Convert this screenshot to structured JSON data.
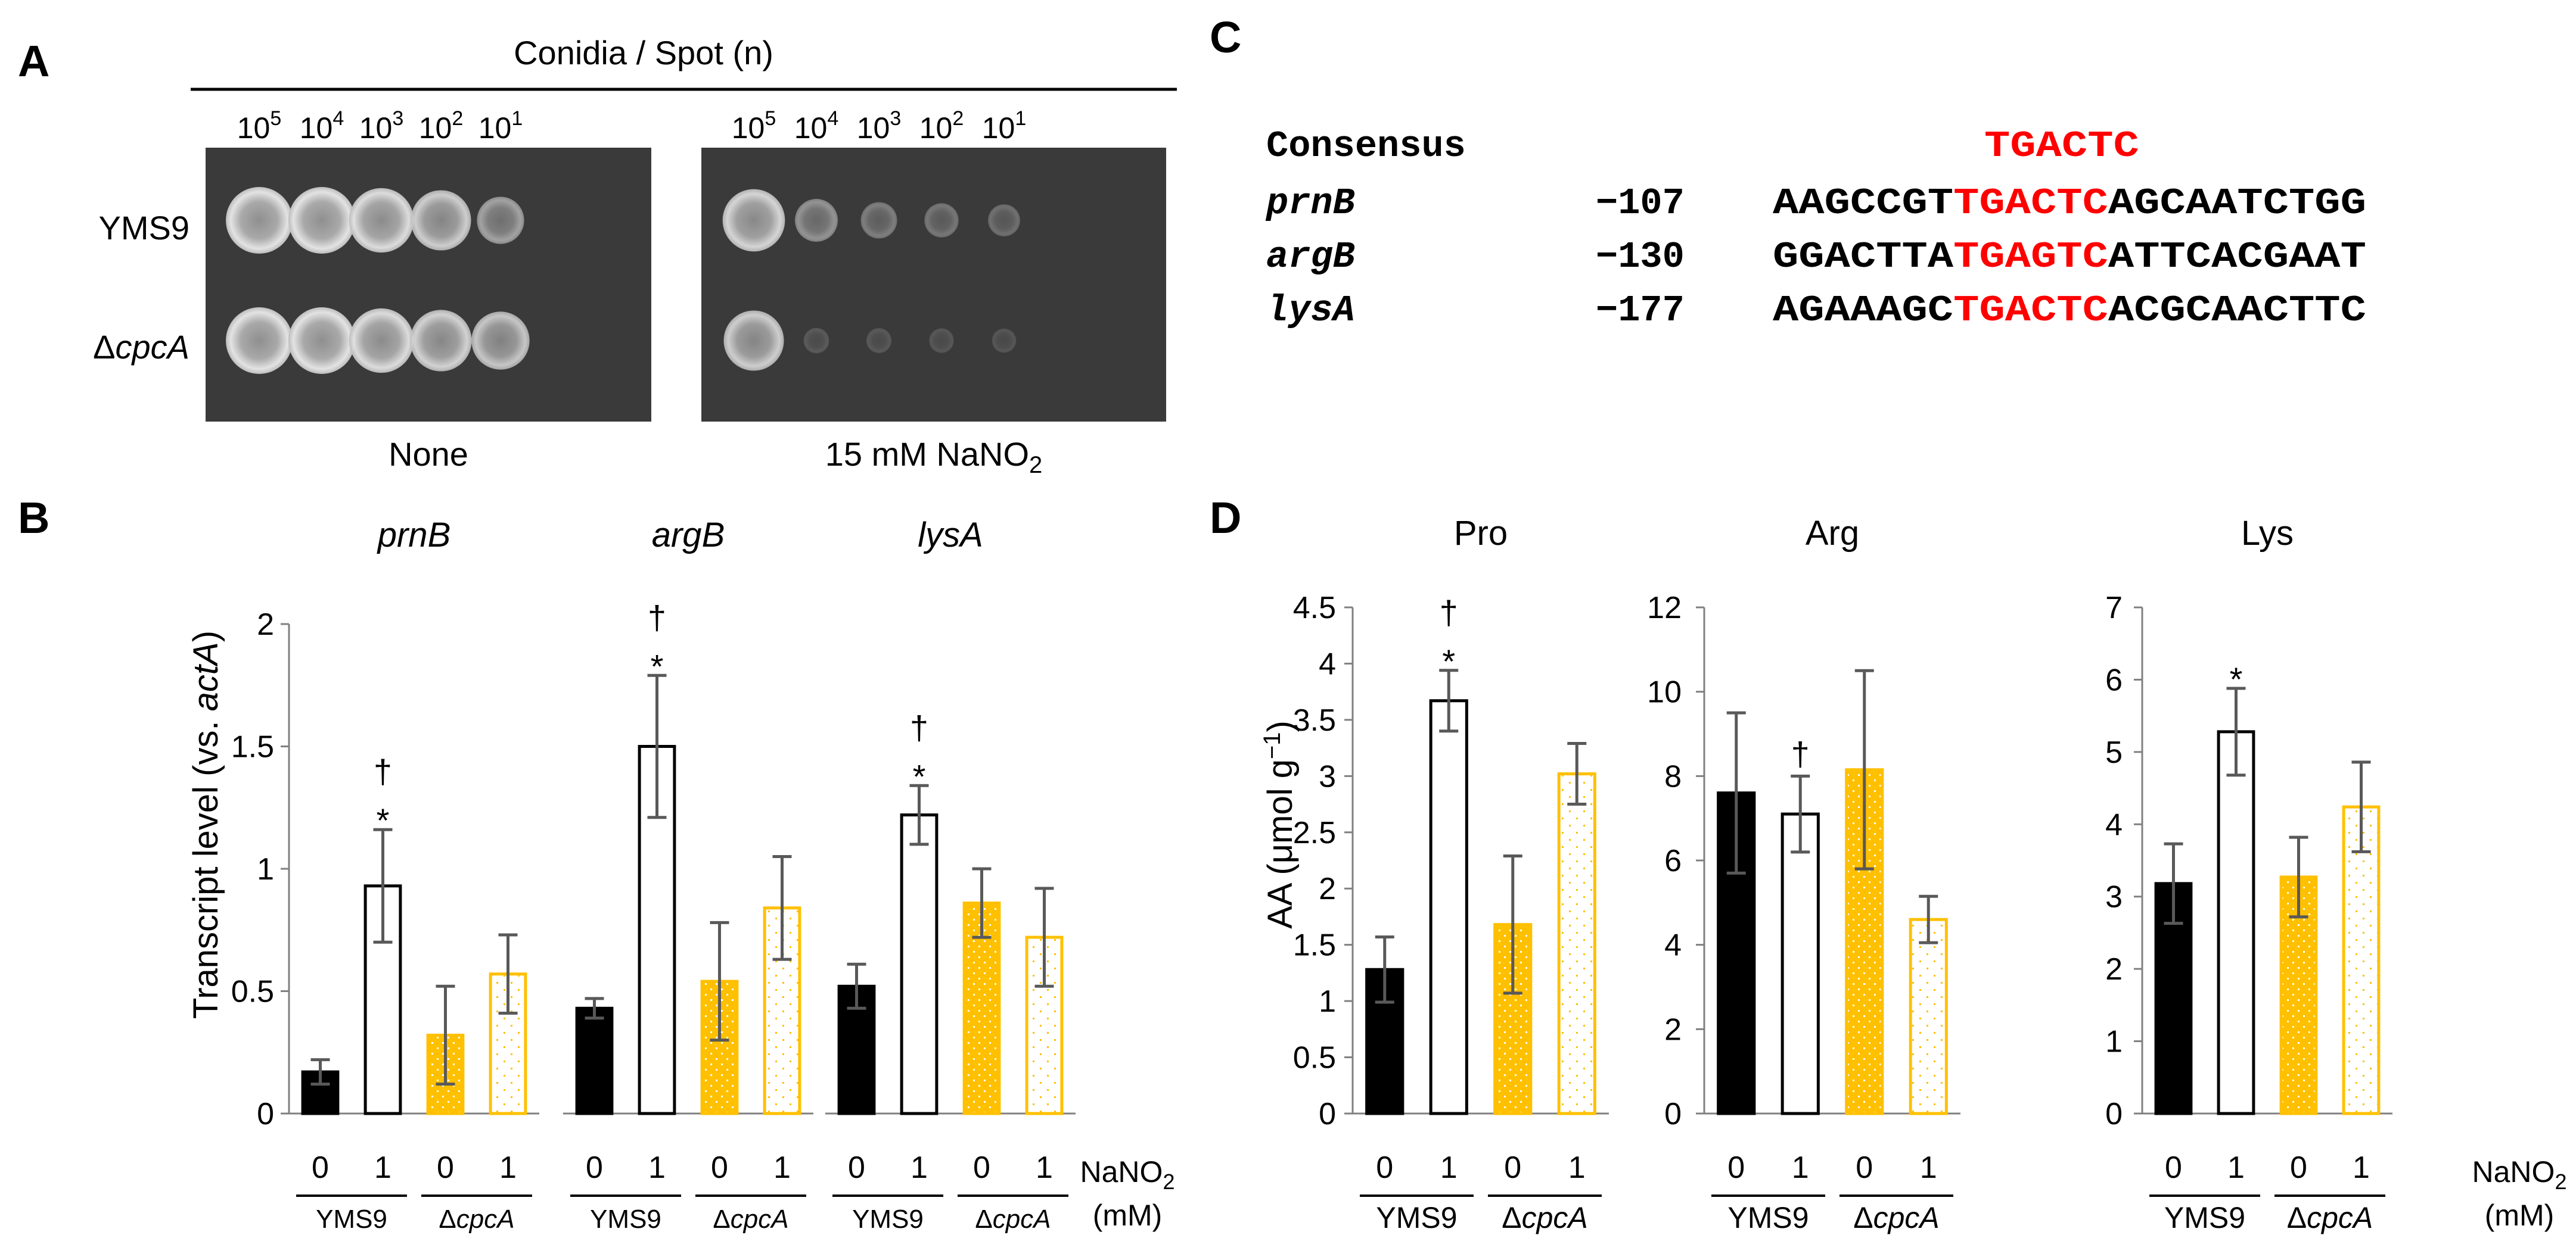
{
  "panel_labels": {
    "a": "A",
    "b": "B",
    "c": "C",
    "d": "D"
  },
  "panelA": {
    "header": "Conidia / Spot (n)",
    "dilutions": [
      {
        "base": "10",
        "exp": "5"
      },
      {
        "base": "10",
        "exp": "4"
      },
      {
        "base": "10",
        "exp": "3"
      },
      {
        "base": "10",
        "exp": "2"
      },
      {
        "base": "10",
        "exp": "1"
      }
    ],
    "strains": [
      {
        "prefix": "",
        "name": "YMS9"
      },
      {
        "prefix": "Δ",
        "name": "cpcA"
      }
    ],
    "conditions": [
      {
        "label": "None",
        "sub": ""
      },
      {
        "label": "15 mM NaNO",
        "sub": "2"
      }
    ],
    "growth": [
      [
        [
          1.0,
          1.0,
          0.95,
          0.85,
          0.55
        ],
        [
          1.0,
          1.0,
          0.95,
          0.88,
          0.8
        ]
      ],
      [
        [
          0.9,
          0.45,
          0.3,
          0.25,
          0.2
        ],
        [
          0.85,
          0.05,
          0.04,
          0.03,
          0.02
        ]
      ]
    ]
  },
  "panelC": {
    "rows": [
      {
        "name": "Consensus",
        "pos": "",
        "pre": "",
        "motif": "TGACTC",
        "post": "",
        "italic": false
      },
      {
        "name": "prnB",
        "pos": "−107",
        "pre": "AAGCCGT",
        "motif": "TGACTC",
        "post": "AGCAATCTGG",
        "italic": true
      },
      {
        "name": "argB",
        "pos": "−130",
        "pre": "GGACTTA",
        "motif": "TGAGTC",
        "post": "ATTCACGAAT",
        "italic": true
      },
      {
        "name": "lysA",
        "pos": "−177",
        "pre": "AGAAAGC",
        "motif": "TGACTC",
        "post": "ACGCAACTTC",
        "italic": true
      }
    ]
  },
  "panelB_ylabel": {
    "prefix": "Transcript level (vs. ",
    "gene": "actA",
    "suffix": ")"
  },
  "panelD_ylabel": {
    "prefix": "AA (",
    "unit": "μmol g",
    "exp": "−1",
    "suffix": ")"
  },
  "xaxis": {
    "treat": [
      "0",
      "1",
      "0",
      "1"
    ],
    "strain1": "YMS9",
    "strain2_prefix": "Δ",
    "strain2_name": "cpcA",
    "nano2_label": "NaNO",
    "nano2_sub": "2",
    "mm": "(mM)"
  },
  "chart_data": [
    {
      "type": "bar",
      "panel": "B",
      "title": "prnB",
      "ylabel": "Transcript level (vs. actA)",
      "ylim": [
        0,
        2
      ],
      "yticks": [
        0,
        0.5,
        1,
        1.5,
        2
      ],
      "ytick_labels": [
        "0",
        "0.5",
        "1",
        "1.5",
        "2"
      ],
      "categories": [
        "YMS9 0",
        "YMS9 1",
        "ΔcpcA 0",
        "ΔcpcA 1"
      ],
      "values": [
        0.17,
        0.93,
        0.32,
        0.57
      ],
      "errors": [
        0.05,
        0.23,
        0.2,
        0.16
      ],
      "annotations": [
        "",
        "†\n*",
        "",
        ""
      ]
    },
    {
      "type": "bar",
      "panel": "B",
      "title": "argB",
      "ylim": [
        0,
        2
      ],
      "yticks": [
        0,
        0.5,
        1,
        1.5,
        2
      ],
      "ytick_labels": [],
      "categories": [
        "YMS9 0",
        "YMS9 1",
        "ΔcpcA 0",
        "ΔcpcA 1"
      ],
      "values": [
        0.43,
        1.5,
        0.54,
        0.84
      ],
      "errors": [
        0.04,
        0.29,
        0.24,
        0.21
      ],
      "annotations": [
        "",
        "†\n*",
        "",
        ""
      ]
    },
    {
      "type": "bar",
      "panel": "B",
      "title": "lysA",
      "ylim": [
        0,
        2
      ],
      "yticks": [
        0,
        0.5,
        1,
        1.5,
        2
      ],
      "ytick_labels": [],
      "categories": [
        "YMS9 0",
        "YMS9 1",
        "ΔcpcA 0",
        "ΔcpcA 1"
      ],
      "values": [
        0.52,
        1.22,
        0.86,
        0.72
      ],
      "errors": [
        0.09,
        0.12,
        0.14,
        0.2
      ],
      "annotations": [
        "",
        "†\n*",
        "",
        ""
      ]
    },
    {
      "type": "bar",
      "panel": "D",
      "title": "Pro",
      "ylabel": "AA (μmol g−1)",
      "ylim": [
        0,
        4.5
      ],
      "yticks": [
        0,
        0.5,
        1,
        1.5,
        2,
        2.5,
        3,
        3.5,
        4,
        4.5
      ],
      "ytick_labels": [
        "0",
        "0.5",
        "1",
        "1.5",
        "2",
        "2.5",
        "3",
        "3.5",
        "4",
        "4.5"
      ],
      "categories": [
        "YMS9 0",
        "YMS9 1",
        "ΔcpcA 0",
        "ΔcpcA 1"
      ],
      "values": [
        1.28,
        3.67,
        1.68,
        3.02
      ],
      "errors": [
        0.29,
        0.27,
        0.61,
        0.27
      ],
      "annotations": [
        "",
        "†\n*",
        "",
        ""
      ]
    },
    {
      "type": "bar",
      "panel": "D",
      "title": "Arg",
      "ylim": [
        0,
        12
      ],
      "yticks": [
        0,
        2,
        4,
        6,
        8,
        10,
        12
      ],
      "ytick_labels": [
        "0",
        "2",
        "4",
        "6",
        "8",
        "10",
        "12"
      ],
      "categories": [
        "YMS9 0",
        "YMS9 1",
        "ΔcpcA 0",
        "ΔcpcA 1"
      ],
      "values": [
        7.6,
        7.1,
        8.15,
        4.6
      ],
      "errors": [
        1.9,
        0.9,
        2.35,
        0.55
      ],
      "annotations": [
        "",
        "†",
        "",
        ""
      ]
    },
    {
      "type": "bar",
      "panel": "D",
      "title": "Lys",
      "ylim": [
        0,
        7
      ],
      "yticks": [
        0,
        1,
        2,
        3,
        4,
        5,
        6,
        7
      ],
      "ytick_labels": [
        "0",
        "1",
        "2",
        "3",
        "4",
        "5",
        "6",
        "7"
      ],
      "categories": [
        "YMS9 0",
        "YMS9 1",
        "ΔcpcA 0",
        "ΔcpcA 1"
      ],
      "values": [
        3.18,
        5.28,
        3.27,
        4.24
      ],
      "errors": [
        0.55,
        0.6,
        0.55,
        0.62
      ],
      "annotations": [
        "",
        "*",
        "",
        ""
      ]
    }
  ],
  "colors": {
    "black": "#000000",
    "white": "#ffffff",
    "orange": "#ffc000",
    "axis": "#808080",
    "error": "#595959",
    "motif": "#ff0000",
    "plate": "#3a3a3a",
    "colony": "#d9d9d9"
  }
}
